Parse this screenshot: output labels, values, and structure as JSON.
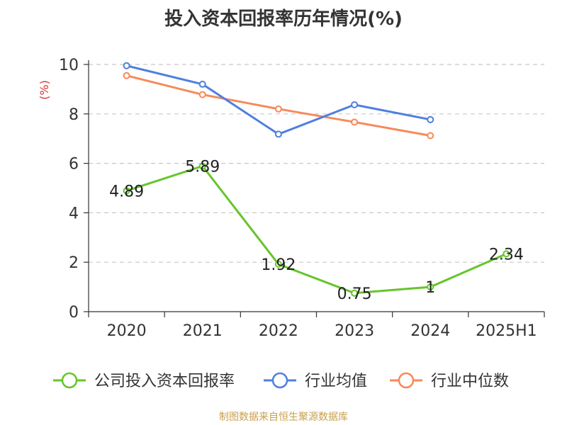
{
  "chart_data": {
    "type": "line",
    "title": "投入资本回报率历年情况(%)",
    "ylabel": "(%)",
    "xlabel": "",
    "categories": [
      "2020",
      "2021",
      "2022",
      "2023",
      "2024",
      "2025H1"
    ],
    "ylim": [
      0,
      10
    ],
    "yticks": [
      0,
      2,
      4,
      6,
      8,
      10
    ],
    "grid": true,
    "legend_position": "bottom",
    "series": [
      {
        "name": "公司投入资本回报率",
        "color": "#66c52b",
        "values": [
          4.89,
          5.89,
          1.92,
          0.75,
          1,
          2.34
        ],
        "labels": [
          "4.89",
          "5.89",
          "1.92",
          "0.75",
          "1",
          "2.34"
        ]
      },
      {
        "name": "行业均值",
        "color": "#4f7fe0",
        "values": [
          9.95,
          9.2,
          7.18,
          8.37,
          7.77,
          null
        ]
      },
      {
        "name": "行业中位数",
        "color": "#f7895a",
        "values": [
          9.55,
          8.78,
          8.2,
          7.67,
          7.12,
          null
        ]
      }
    ]
  },
  "source_note": "制图数据来自恒生聚源数据库"
}
